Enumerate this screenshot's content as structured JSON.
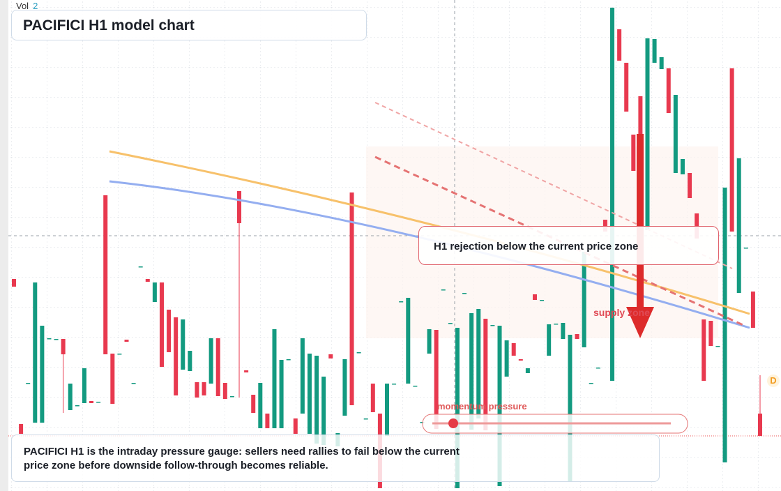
{
  "vol": {
    "label": "Vol",
    "value": "2"
  },
  "header": {
    "title": "PACIFICI H1 model chart"
  },
  "callout": "H1 rejection below the current price zone",
  "zone_label": "supply zone",
  "gauge_label": "momentum pressure",
  "badge": "D",
  "note": "PACIFICI H1 is the intraday pressure gauge: sellers need rallies to fail below the current price zone before downside follow-through becomes reliable.",
  "chart_data": {
    "type": "candlestick",
    "ylim": [
      0,
      70.4
    ],
    "up_color": "#139a80",
    "down_color": "#e8394f",
    "ohlc": [
      [
        30.4,
        30.4,
        29.3,
        29.3
      ],
      [
        9.6,
        9.6,
        8.2,
        8.2
      ],
      [
        15.5,
        15.5,
        15.5,
        15.5
      ],
      [
        9.8,
        29.9,
        9.8,
        29.9
      ],
      [
        9.8,
        23.7,
        9.8,
        23.7
      ],
      [
        21.9,
        21.9,
        21.9,
        21.9
      ],
      [
        21.8,
        21.8,
        21.8,
        21.8
      ],
      [
        21.8,
        21.8,
        11.2,
        19.6
      ],
      [
        11.6,
        15.4,
        11.6,
        15.4
      ],
      [
        12.3,
        12.3,
        12.3,
        12.3
      ],
      [
        12.6,
        17.6,
        12.6,
        17.6
      ],
      [
        12.9,
        12.9,
        12.6,
        12.6
      ],
      [
        12.8,
        12.8,
        12.8,
        12.8
      ],
      [
        42.4,
        42.4,
        19.6,
        19.6
      ],
      [
        19.7,
        19.7,
        12.5,
        12.5
      ],
      [
        19.7,
        19.7,
        19.7,
        19.7
      ],
      [
        21.7,
        21.7,
        21.4,
        21.4
      ],
      [
        15.5,
        15.5,
        15.5,
        15.5
      ],
      [
        32.2,
        32.2,
        32.2,
        32.2
      ],
      [
        30.4,
        30.4,
        30.0,
        30.0
      ],
      [
        27.1,
        29.9,
        27.1,
        29.9
      ],
      [
        29.9,
        29.9,
        17.8,
        17.8
      ],
      [
        26.0,
        26.0,
        19.9,
        19.9
      ],
      [
        24.9,
        24.9,
        13.7,
        13.7
      ],
      [
        17.4,
        24.6,
        17.4,
        24.6
      ],
      [
        17.2,
        20.1,
        17.2,
        20.1
      ],
      [
        15.6,
        15.6,
        13.4,
        13.4
      ],
      [
        15.6,
        15.6,
        13.7,
        13.7
      ],
      [
        15.4,
        21.9,
        15.4,
        21.9
      ],
      [
        21.9,
        21.9,
        13.6,
        13.6
      ],
      [
        15.5,
        15.5,
        13.2,
        13.2
      ],
      [
        13.6,
        13.6,
        13.6,
        13.6
      ],
      [
        43.0,
        43.0,
        13.4,
        38.4
      ],
      [
        17.3,
        17.3,
        17.0,
        17.0
      ],
      [
        13.8,
        13.8,
        11.2,
        11.2
      ],
      [
        9.0,
        15.5,
        9.0,
        15.5
      ],
      [
        11.1,
        11.1,
        9.0,
        9.0
      ],
      [
        9.0,
        23.2,
        9.0,
        23.2
      ],
      [
        9.0,
        18.8,
        9.0,
        18.8
      ],
      [
        18.9,
        18.9,
        18.9,
        18.9
      ],
      [
        10.4,
        10.4,
        8.2,
        8.2
      ],
      [
        11.1,
        21.9,
        11.1,
        21.9
      ],
      [
        8.2,
        19.7,
        8.2,
        19.7
      ],
      [
        6.8,
        19.4,
        6.8,
        19.4
      ],
      [
        6.6,
        16.4,
        6.6,
        16.4
      ],
      [
        19.6,
        19.6,
        19.0,
        19.0
      ],
      [
        6.4,
        8.3,
        6.4,
        8.3
      ],
      [
        10.8,
        18.9,
        10.8,
        18.9
      ],
      [
        42.8,
        42.8,
        12.3,
        12.3
      ],
      [
        19.9,
        19.9,
        19.9,
        19.9
      ],
      [
        10.4,
        10.4,
        10.4,
        10.4
      ],
      [
        15.4,
        15.4,
        11.3,
        11.3
      ],
      [
        11.1,
        11.1,
        0.4,
        0.4
      ],
      [
        7.9,
        15.4,
        7.9,
        15.4
      ],
      [
        15.4,
        15.4,
        15.4,
        15.4
      ],
      [
        27.2,
        27.2,
        27.2,
        27.2
      ],
      [
        15.4,
        27.7,
        15.4,
        27.7
      ],
      [
        15.1,
        15.1,
        15.1,
        15.1
      ],
      [
        9.9,
        9.9,
        9.9,
        9.9
      ],
      [
        19.7,
        23.2,
        19.7,
        23.2
      ],
      [
        23.1,
        23.1,
        8.9,
        8.9
      ],
      [
        28.9,
        28.9,
        28.9,
        28.9
      ],
      [
        24.1,
        24.1,
        24.1,
        24.1
      ],
      [
        0.4,
        23.4,
        0.4,
        23.4
      ],
      [
        28.4,
        28.4,
        28.4,
        28.4
      ],
      [
        8.8,
        25.5,
        8.8,
        25.5
      ],
      [
        10.4,
        26.1,
        10.4,
        26.1
      ],
      [
        24.7,
        24.7,
        8.7,
        8.7
      ],
      [
        23.8,
        23.8,
        23.8,
        23.8
      ],
      [
        0.7,
        23.7,
        0.7,
        23.7
      ],
      [
        16.4,
        21.6,
        16.4,
        21.6
      ],
      [
        21.2,
        21.2,
        19.4,
        19.4
      ],
      [
        18.9,
        18.9,
        18.7,
        18.7
      ],
      [
        16.9,
        17.6,
        16.9,
        17.6
      ],
      [
        28.2,
        28.2,
        27.4,
        27.4
      ],
      [
        27.4,
        27.4,
        27.4,
        27.4
      ],
      [
        19.4,
        23.9,
        19.4,
        23.9
      ],
      [
        24.0,
        24.0,
        24.0,
        24.0
      ],
      [
        21.8,
        24.1,
        21.8,
        24.1
      ],
      [
        1.4,
        22.4,
        1.4,
        22.4
      ],
      [
        22.5,
        22.5,
        21.8,
        21.8
      ],
      [
        20.6,
        34.3,
        20.6,
        34.3
      ],
      [
        15.5,
        15.5,
        15.5,
        15.5
      ],
      [
        17.7,
        17.7,
        17.7,
        17.7
      ],
      [
        38.9,
        38.9,
        37.2,
        37.2
      ],
      [
        15.8,
        69.3,
        15.8,
        69.3
      ],
      [
        66.2,
        66.2,
        61.7,
        61.7
      ],
      [
        61.4,
        61.4,
        54.4,
        54.4
      ],
      [
        51.1,
        51.1,
        45.9,
        45.9
      ],
      [
        56.6,
        56.6,
        37.2,
        37.2
      ],
      [
        37.4,
        64.9,
        37.4,
        64.9
      ],
      [
        61.4,
        64.8,
        61.4,
        64.8
      ],
      [
        60.5,
        62.2,
        60.5,
        62.2
      ],
      [
        60.6,
        60.6,
        54.2,
        54.2
      ],
      [
        45.6,
        56.8,
        45.6,
        56.8
      ],
      [
        45.4,
        47.6,
        45.4,
        47.6
      ],
      [
        45.6,
        45.6,
        42.0,
        42.0
      ],
      [
        39.8,
        39.8,
        36.2,
        36.2
      ],
      [
        24.6,
        24.6,
        15.8,
        15.8
      ],
      [
        24.4,
        24.4,
        20.8,
        20.8
      ],
      [
        20.8,
        20.8,
        20.8,
        20.8
      ],
      [
        4.1,
        43.5,
        4.1,
        43.5
      ],
      [
        60.6,
        60.6,
        37.2,
        37.2
      ],
      [
        28.4,
        47.7,
        28.4,
        47.7
      ],
      [
        34.9,
        34.9,
        34.9,
        34.9
      ],
      [
        28.6,
        28.6,
        23.4,
        23.4
      ],
      [
        11.1,
        16.6,
        7.9,
        7.9
      ]
    ]
  }
}
